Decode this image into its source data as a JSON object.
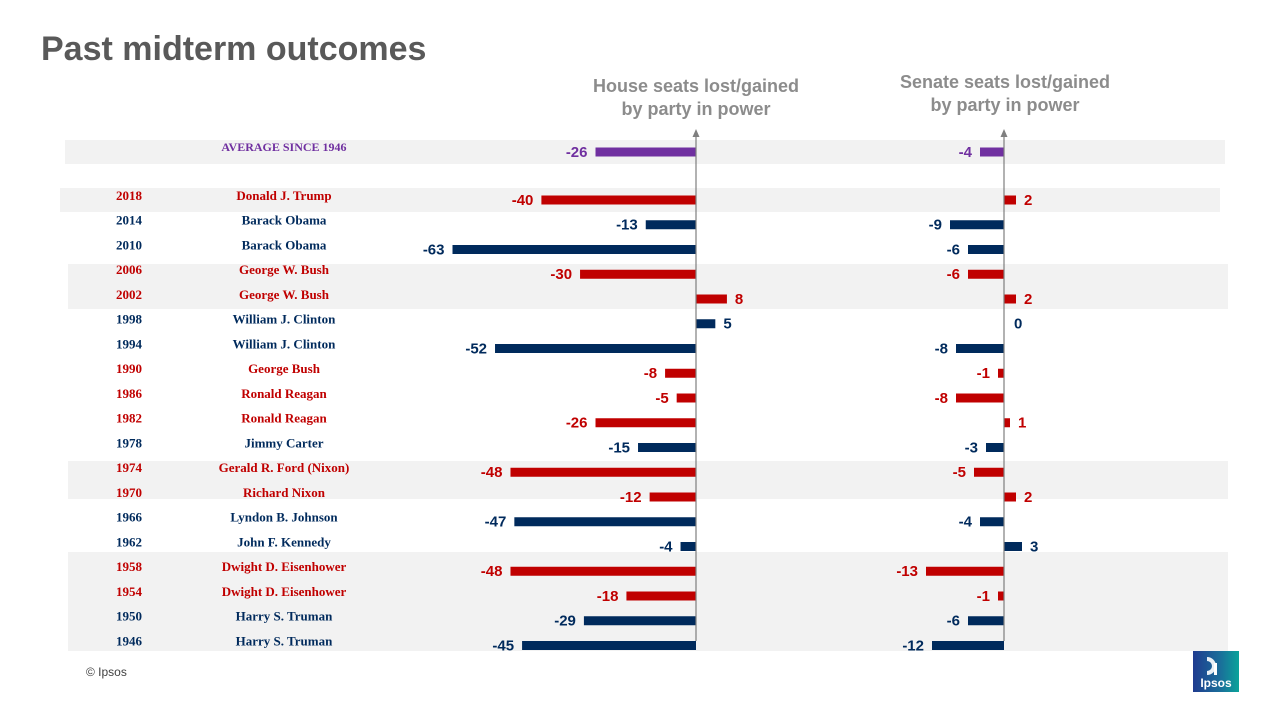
{
  "title": "Past midterm outcomes",
  "copyright": "© Ipsos",
  "logo_text": "Ipsos",
  "colors": {
    "democrat": "#002a5c",
    "republican": "#c00000",
    "average": "#7030a0",
    "band": "#f2f2f2",
    "axis": "#7f7f7f",
    "header": "#8c8c8c"
  },
  "chart_data": {
    "type": "bar",
    "house_header": [
      "House seats lost/gained",
      "by party in power"
    ],
    "senate_header": [
      "Senate seats lost/gained",
      "by party in power"
    ],
    "average": {
      "label": "AVERAGE SINCE 1946",
      "house": -26,
      "senate": -4
    },
    "rows": [
      {
        "year": "2018",
        "president": "Donald J. Trump",
        "party": "R",
        "house": -40,
        "senate": 2
      },
      {
        "year": "2014",
        "president": "Barack Obama",
        "party": "D",
        "house": -13,
        "senate": -9
      },
      {
        "year": "2010",
        "president": "Barack Obama",
        "party": "D",
        "house": -63,
        "senate": -6
      },
      {
        "year": "2006",
        "president": "George W. Bush",
        "party": "R",
        "house": -30,
        "senate": -6
      },
      {
        "year": "2002",
        "president": "George W. Bush",
        "party": "R",
        "house": 8,
        "senate": 2
      },
      {
        "year": "1998",
        "president": "William J. Clinton",
        "party": "D",
        "house": 5,
        "senate": 0
      },
      {
        "year": "1994",
        "president": "William J. Clinton",
        "party": "D",
        "house": -52,
        "senate": -8
      },
      {
        "year": "1990",
        "president": "George Bush",
        "party": "R",
        "house": -8,
        "senate": -1
      },
      {
        "year": "1986",
        "president": "Ronald Reagan",
        "party": "R",
        "house": -5,
        "senate": -8
      },
      {
        "year": "1982",
        "president": "Ronald Reagan",
        "party": "R",
        "house": -26,
        "senate": 1
      },
      {
        "year": "1978",
        "president": "Jimmy Carter",
        "party": "D",
        "house": -15,
        "senate": -3
      },
      {
        "year": "1974",
        "president": "Gerald R. Ford (Nixon)",
        "party": "R",
        "house": -48,
        "senate": -5
      },
      {
        "year": "1970",
        "president": "Richard Nixon",
        "party": "R",
        "house": -12,
        "senate": 2
      },
      {
        "year": "1966",
        "president": "Lyndon B. Johnson",
        "party": "D",
        "house": -47,
        "senate": -4
      },
      {
        "year": "1962",
        "president": "John F. Kennedy",
        "party": "D",
        "house": -4,
        "senate": 3
      },
      {
        "year": "1958",
        "president": "Dwight D. Eisenhower",
        "party": "R",
        "house": -48,
        "senate": -13
      },
      {
        "year": "1954",
        "president": "Dwight D. Eisenhower",
        "party": "R",
        "house": -18,
        "senate": -1
      },
      {
        "year": "1950",
        "president": "Harry S. Truman",
        "party": "D",
        "house": -29,
        "senate": -6
      },
      {
        "year": "1946",
        "president": "Harry S. Truman",
        "party": "D",
        "house": -45,
        "senate": -12
      }
    ]
  }
}
